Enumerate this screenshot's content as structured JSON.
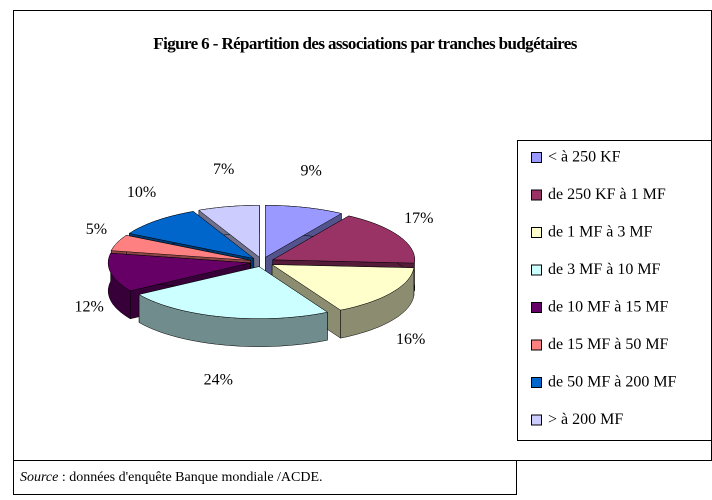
{
  "chart_data": {
    "type": "pie3d",
    "title": "Figure 6 - Répartition des associations par tranches budgétaires",
    "categories": [
      "< à 250 KF",
      "de 250 KF à 1 MF",
      "de 1 MF à 3 MF",
      "de 3 MF à 10 MF",
      "de 10 MF à 15 MF",
      "de 15 MF à 50 MF",
      "de 50 MF à 200 MF",
      "> à 200 MF"
    ],
    "values": [
      9,
      17,
      16,
      24,
      12,
      5,
      10,
      7
    ],
    "value_labels": [
      "9%",
      "17%",
      "16%",
      "24%",
      "12%",
      "5%",
      "10%",
      "7%"
    ],
    "colors": [
      "#9999ff",
      "#993366",
      "#ffffcc",
      "#ccffff",
      "#660066",
      "#ff8080",
      "#0066cc",
      "#ccccff"
    ],
    "legend": "right",
    "source_label": "Source",
    "source_text": " : données d'enquête Banque mondiale /ACDE."
  }
}
